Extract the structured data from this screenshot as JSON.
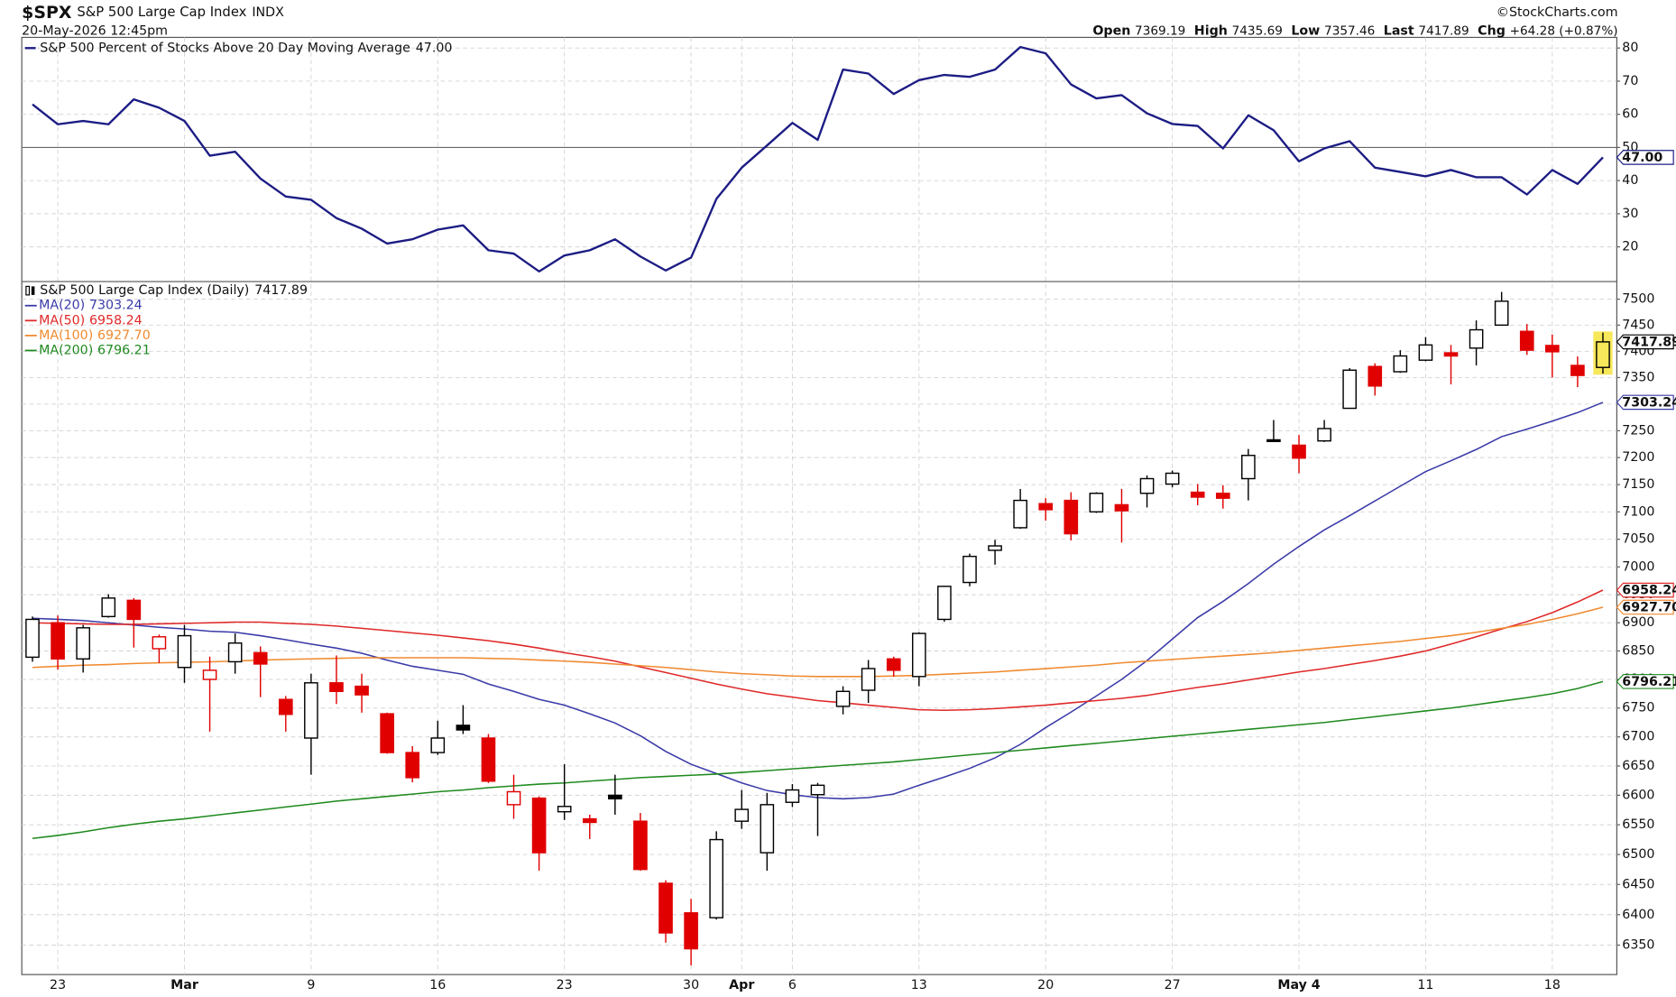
{
  "header": {
    "symbol": "$SPX",
    "name": "S&P 500 Large Cap Index",
    "exchange": "INDX",
    "date": "20-May-2026 12:45pm",
    "brand": "©StockCharts.com",
    "quote": [
      {
        "label": "Open",
        "value": "7369.19"
      },
      {
        "label": "High",
        "value": "7435.69"
      },
      {
        "label": "Low",
        "value": "7357.46"
      },
      {
        "label": "Last",
        "value": "7417.89"
      },
      {
        "label": "Chg",
        "value": "+64.28 (+0.87%)"
      }
    ]
  },
  "chart_data": [
    {
      "type": "line",
      "ylim": [
        9.7,
        83.2
      ],
      "yticks": [
        20,
        30,
        40,
        50,
        60,
        70,
        80
      ],
      "grid": true,
      "reference_line": 50,
      "series": [
        {
          "name": "S&P 500 Percent of Stocks Above 20 Day Moving Average",
          "last_value_label": "47.00",
          "color": "#1c1c84",
          "values": [
            63,
            57,
            58,
            57,
            64.5,
            62,
            58,
            47.5,
            48.7,
            40.6,
            35.2,
            34.2,
            28.7,
            25.5,
            21,
            22.3,
            25.2,
            26.5,
            19,
            18,
            12.6,
            17.4,
            19,
            22.3,
            17.1,
            12.9,
            16.8,
            34.5,
            43.9,
            50.6,
            57.4,
            52.3,
            73.5,
            72.3,
            66.1,
            70.3,
            71.9,
            71.3,
            73.5,
            80.3,
            78.4,
            69,
            64.8,
            65.8,
            60.3,
            57.1,
            56.5,
            49.7,
            59.7,
            55.2,
            45.8,
            49.7,
            51.9,
            43.9,
            42.6,
            41.3,
            43.2,
            41,
            41,
            35.8,
            43.2,
            39,
            47
          ]
        }
      ]
    },
    {
      "type": "candlestick",
      "title": "S&P 500 Large Cap Index (Daily)",
      "last_label": "7417.89",
      "log_scale": true,
      "grid": true,
      "ylim": [
        6302,
        7533
      ],
      "yticks": [
        6350,
        6400,
        6450,
        6500,
        6550,
        6600,
        6650,
        6700,
        6750,
        6800,
        6850,
        6900,
        6950,
        7000,
        7050,
        7100,
        7150,
        7200,
        7250,
        7300,
        7350,
        7400,
        7450,
        7500
      ],
      "up_color": "#000000",
      "down_color": "#e00000",
      "highlight_color": "#f7e75a",
      "categories": [
        null,
        "23",
        null,
        null,
        null,
        null,
        "Mar",
        null,
        null,
        null,
        null,
        "9",
        null,
        null,
        null,
        null,
        "16",
        null,
        null,
        null,
        null,
        "23",
        null,
        null,
        null,
        null,
        "30",
        null,
        "Apr",
        null,
        "6",
        null,
        null,
        null,
        null,
        "13",
        null,
        null,
        null,
        null,
        "20",
        null,
        null,
        null,
        null,
        "27",
        null,
        null,
        null,
        null,
        "May 4",
        null,
        null,
        null,
        null,
        "11",
        null,
        null,
        null,
        null,
        "18",
        null,
        null
      ],
      "open": [
        6839,
        6900,
        6836,
        6911,
        6940,
        6854,
        6821,
        6800,
        6831,
        6847,
        6765,
        6698,
        6794,
        6788,
        6740,
        6673,
        6673,
        6720,
        6698,
        6584,
        6595,
        6572,
        6560,
        6600,
        6556,
        6452,
        6403,
        6395,
        6556,
        6503,
        6588,
        6601,
        6753,
        6781,
        6836,
        6805,
        6906,
        6972,
        7030,
        7071,
        7115,
        7121,
        7100,
        7113,
        7134,
        7151,
        7136,
        7134,
        7161,
        7233,
        7223,
        7231,
        7292,
        7371,
        7361,
        7383,
        7397,
        7406,
        7450,
        7438,
        7411,
        7373,
        7369.19
      ],
      "high": [
        6911,
        6913,
        6896,
        6951,
        6944,
        6879,
        6896,
        6840,
        6881,
        6858,
        6771,
        6810,
        6842,
        6810,
        6742,
        6684,
        6728,
        6755,
        6705,
        6635,
        6598,
        6653,
        6567,
        6635,
        6570,
        6457,
        6426,
        6539,
        6609,
        6604,
        6619,
        6621,
        6788,
        6834,
        6840,
        6883,
        6966,
        7024,
        7049,
        7142,
        7125,
        7136,
        7136,
        7142,
        7167,
        7176,
        7151,
        7149,
        7216,
        7270,
        7242,
        7270,
        7368,
        7377,
        7402,
        7427,
        7412,
        7459,
        7514,
        7452,
        7432,
        7390,
        7435.69
      ],
      "low": [
        6831,
        6817,
        6812,
        6909,
        6856,
        6829,
        6794,
        6709,
        6810,
        6769,
        6709,
        6635,
        6757,
        6742,
        6671,
        6622,
        6669,
        6705,
        6621,
        6560,
        6473,
        6558,
        6526,
        6567,
        6473,
        6354,
        6317,
        6392,
        6543,
        6473,
        6580,
        6531,
        6739,
        6759,
        6805,
        6788,
        6902,
        6965,
        7004,
        7069,
        7084,
        7048,
        7098,
        7044,
        7108,
        7145,
        7112,
        7106,
        7121,
        7229,
        7171,
        7229,
        7291,
        7316,
        7359,
        7381,
        7337,
        7373,
        7449,
        7393,
        7350,
        7332,
        7357.46
      ],
      "close": [
        6906,
        6836,
        6891,
        6944,
        6906,
        6875,
        6877,
        6816,
        6864,
        6827,
        6739,
        6794,
        6779,
        6773,
        6673,
        6630,
        6698,
        6712,
        6624,
        6606,
        6503,
        6581,
        6554,
        6594,
        6475,
        6370,
        6344,
        6525,
        6576,
        6584,
        6609,
        6617,
        6779,
        6819,
        6816,
        6881,
        6965,
        7019,
        7038,
        7121,
        7104,
        7060,
        7134,
        7102,
        7161,
        7171,
        7127,
        7125,
        7204,
        7231,
        7199,
        7254,
        7364,
        7334,
        7391,
        7412,
        7391,
        7441,
        7496,
        7402,
        7399,
        7354,
        7417.89
      ],
      "overlays": [
        {
          "name": "MA(20)",
          "value_label": "7303.24",
          "color": "#3a3aa8",
          "values": [
            6908,
            6906,
            6904,
            6900,
            6896,
            6892,
            6889,
            6885,
            6883,
            6877,
            6870,
            6862,
            6855,
            6846,
            6834,
            6823,
            6816,
            6809,
            6792,
            6779,
            6765,
            6755,
            6740,
            6724,
            6702,
            6675,
            6653,
            6637,
            6621,
            6608,
            6601,
            6596,
            6594,
            6596,
            6602,
            6617,
            6631,
            6646,
            6664,
            6687,
            6716,
            6743,
            6771,
            6800,
            6833,
            6871,
            6909,
            6938,
            6970,
            7005,
            7037,
            7067,
            7093,
            7120,
            7147,
            7174,
            7194,
            7215,
            7239,
            7253,
            7268,
            7284,
            7303.24
          ]
        },
        {
          "name": "MA(50)",
          "value_label": "6958.24",
          "color": "#e02828",
          "values": [
            6900,
            6899,
            6898,
            6897,
            6897,
            6898,
            6899,
            6900,
            6901,
            6901,
            6899,
            6897,
            6894,
            6890,
            6886,
            6882,
            6878,
            6873,
            6868,
            6862,
            6855,
            6847,
            6840,
            6832,
            6822,
            6812,
            6802,
            6792,
            6783,
            6775,
            6769,
            6763,
            6759,
            6755,
            6751,
            6747,
            6746,
            6747,
            6749,
            6752,
            6755,
            6759,
            6763,
            6767,
            6772,
            6779,
            6786,
            6792,
            6799,
            6806,
            6813,
            6819,
            6826,
            6833,
            6841,
            6850,
            6862,
            6875,
            6889,
            6902,
            6918,
            6937,
            6958.24
          ]
        },
        {
          "name": "MA(100)",
          "value_label": "6927.70",
          "color": "#f08a30",
          "values": [
            6821,
            6823,
            6825,
            6826,
            6828,
            6829,
            6830,
            6831,
            6832,
            6834,
            6835,
            6836,
            6837,
            6838,
            6838,
            6838,
            6838,
            6838,
            6837,
            6836,
            6834,
            6832,
            6830,
            6827,
            6824,
            6821,
            6817,
            6813,
            6810,
            6808,
            6806,
            6805,
            6805,
            6805,
            6806,
            6807,
            6809,
            6811,
            6813,
            6816,
            6819,
            6822,
            6825,
            6829,
            6832,
            6835,
            6838,
            6841,
            6844,
            6847,
            6851,
            6855,
            6859,
            6863,
            6867,
            6872,
            6877,
            6883,
            6890,
            6897,
            6906,
            6916,
            6927.7
          ]
        },
        {
          "name": "MA(200)",
          "value_label": "6796.21",
          "color": "#1f8a1f",
          "values": [
            6527,
            6532,
            6538,
            6545,
            6551,
            6556,
            6560,
            6565,
            6570,
            6575,
            6580,
            6585,
            6590,
            6594,
            6598,
            6602,
            6606,
            6609,
            6613,
            6616,
            6619,
            6621,
            6624,
            6627,
            6630,
            6632,
            6634,
            6636,
            6639,
            6642,
            6645,
            6648,
            6651,
            6654,
            6657,
            6661,
            6665,
            6669,
            6673,
            6677,
            6681,
            6685,
            6689,
            6693,
            6697,
            6701,
            6705,
            6709,
            6713,
            6717,
            6721,
            6725,
            6730,
            6735,
            6740,
            6745,
            6750,
            6756,
            6762,
            6768,
            6775,
            6784,
            6796.21
          ]
        }
      ]
    }
  ]
}
